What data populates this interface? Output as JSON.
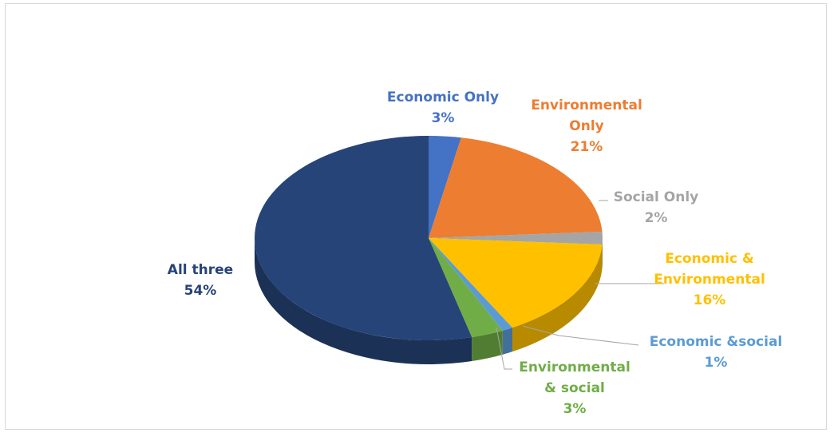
{
  "chart_data": {
    "type": "pie",
    "three_d": true,
    "title": "",
    "unit": "%",
    "slices": [
      {
        "category": "Economic Only",
        "value": 3,
        "label": "3%",
        "color": "#4472C4"
      },
      {
        "category": "Environmental Only",
        "value": 21,
        "label": "21%",
        "color": "#ED7D31"
      },
      {
        "category": "Social Only",
        "value": 2,
        "label": "2%",
        "color": "#A5A5A5"
      },
      {
        "category": "Economic & Environmental",
        "value": 16,
        "label": "16%",
        "color": "#FFC000"
      },
      {
        "category": "Economic &social",
        "value": 1,
        "label": "1%",
        "color": "#5B9BD5"
      },
      {
        "category": "Environmental & social",
        "value": 3,
        "label": "3%",
        "color": "#70AD47"
      },
      {
        "category": "All three",
        "value": 54,
        "label": "54%",
        "color": "#264478"
      }
    ],
    "label_lines": [
      [
        "Economic Only",
        "3%"
      ],
      [
        "Environmental",
        "Only",
        "21%"
      ],
      [
        "Social Only",
        "2%"
      ],
      [
        "Economic &",
        "Environmental",
        "16%"
      ],
      [
        "Economic &social",
        "1%"
      ],
      [
        "Environmental",
        "& social",
        "3%"
      ],
      [
        "All three",
        "54%"
      ]
    ],
    "legend": "none",
    "data_labels": "outside with leader lines"
  }
}
